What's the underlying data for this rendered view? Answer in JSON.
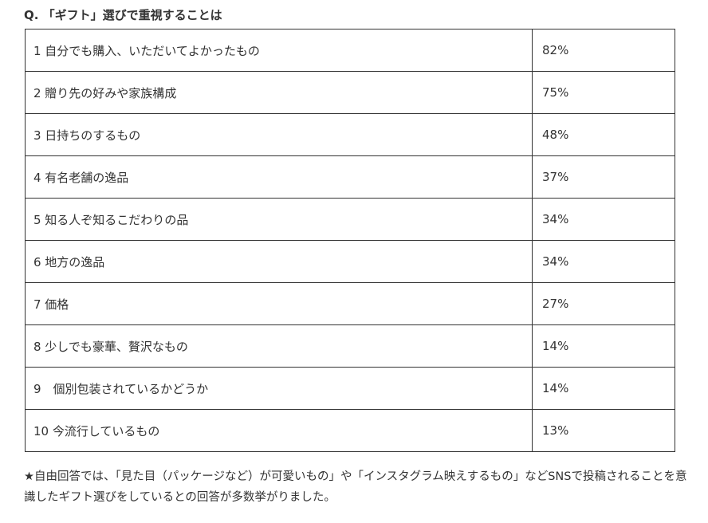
{
  "question": "Q. 「ギフト」選びで重視することは",
  "rows": [
    {
      "label": "1 自分でも購入、いただいてよかったもの",
      "percent": "82%"
    },
    {
      "label": "2 贈り先の好みや家族構成",
      "percent": "75%"
    },
    {
      "label": "3 日持ちのするもの",
      "percent": "48%"
    },
    {
      "label": "4 有名老舗の逸品",
      "percent": "37%"
    },
    {
      "label": "5 知る人ぞ知るこだわりの品",
      "percent": "34%"
    },
    {
      "label": "6 地方の逸品",
      "percent": "34%"
    },
    {
      "label": "7 価格",
      "percent": "27%"
    },
    {
      "label": "8 少しでも豪華、贅沢なもの",
      "percent": "14%"
    },
    {
      "label": "9　個別包装されているかどうか",
      "percent": "14%"
    },
    {
      "label": "10 今流行しているもの",
      "percent": "13%"
    }
  ],
  "note": "★自由回答では、「見た目（パッケージなど）が可愛いもの」や「インスタグラム映えするもの」などSNSで投稿されることを意識したギフト選びをしているとの回答が多数挙がりました。"
}
